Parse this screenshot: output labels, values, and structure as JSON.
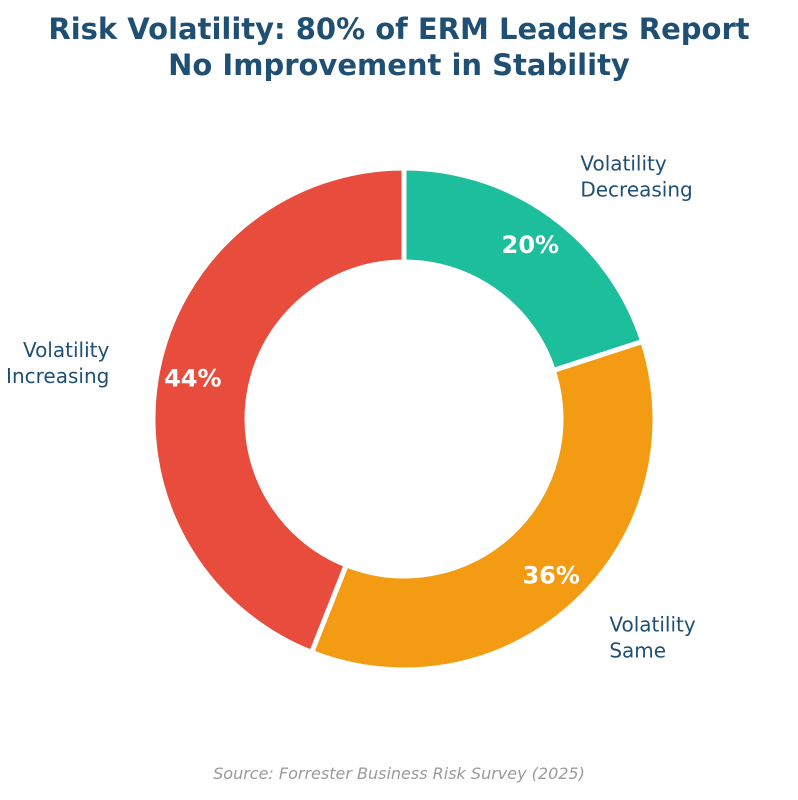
{
  "title_lines": [
    "Risk Volatility: 80% of ERM Leaders Report",
    "No Improvement in Stability"
  ],
  "source": "Source: Forrester Business Risk Survey (2025)",
  "chart_data": {
    "type": "pie",
    "variant": "donut",
    "title": "Risk Volatility: 80% of ERM Leaders Report No Improvement in Stability",
    "slices": [
      {
        "label_lines": [
          "Volatility",
          "Decreasing"
        ],
        "value": 20,
        "value_label": "20%",
        "color": "#1dbe9c"
      },
      {
        "label_lines": [
          "Volatility",
          "Same"
        ],
        "value": 36,
        "value_label": "36%",
        "color": "#f39c13"
      },
      {
        "label_lines": [
          "Volatility",
          "Increasing"
        ],
        "value": 44,
        "value_label": "44%",
        "color": "#e74c3c"
      }
    ],
    "start": "top",
    "direction": "clockwise",
    "legend": "none"
  }
}
